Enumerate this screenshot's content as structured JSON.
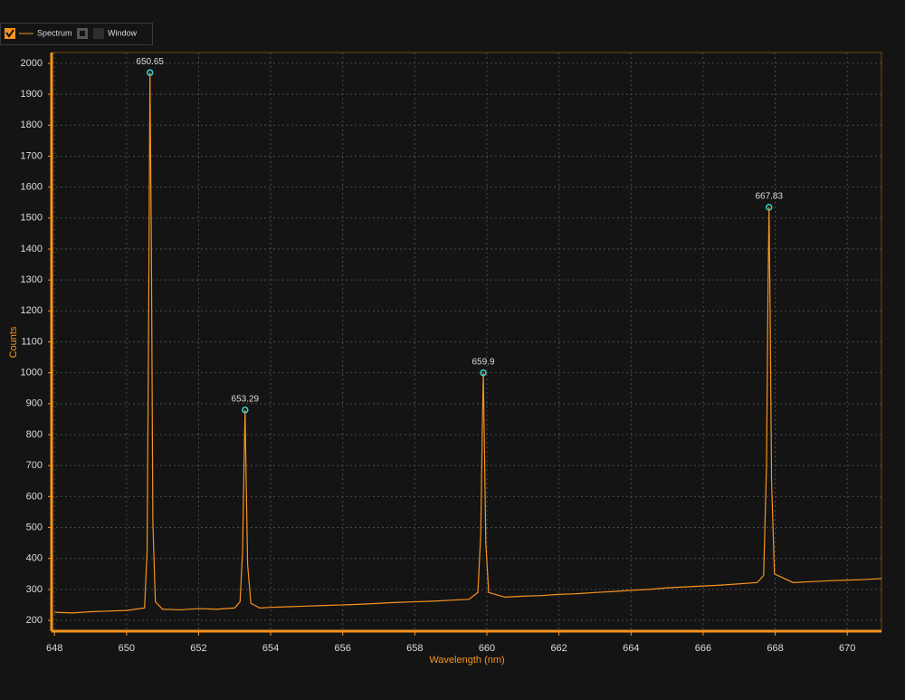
{
  "chart_data": {
    "type": "line",
    "x_label": "Wavelength (nm)",
    "y_label": "Counts",
    "x": [
      648,
      648.5,
      649,
      649.5,
      650,
      650.5,
      650.57,
      650.61,
      650.65,
      650.69,
      650.73,
      650.8,
      651,
      651.5,
      652,
      652.5,
      653,
      653.15,
      653.22,
      653.26,
      653.29,
      653.32,
      653.36,
      653.45,
      653.7,
      654,
      654.5,
      655,
      655.5,
      656,
      656.5,
      657,
      657.5,
      658,
      658.5,
      659,
      659.5,
      659.75,
      659.83,
      659.87,
      659.9,
      659.93,
      659.97,
      660.05,
      660.5,
      661,
      661.5,
      662,
      662.5,
      663,
      663.5,
      664,
      664.5,
      665,
      665.5,
      666,
      666.5,
      667,
      667.5,
      667.68,
      667.76,
      667.8,
      667.83,
      667.86,
      667.9,
      667.98,
      668.5,
      669,
      669.5,
      670,
      670.5,
      670.95
    ],
    "series": [
      {
        "name": "Spectrum",
        "color": "#f7931e",
        "visible": true,
        "values": [
          226,
          224,
          228,
          230,
          232,
          240,
          420,
          1100,
          1970,
          1400,
          520,
          260,
          236,
          234,
          238,
          236,
          240,
          260,
          420,
          700,
          880,
          650,
          380,
          255,
          240,
          242,
          244,
          246,
          248,
          250,
          252,
          255,
          258,
          260,
          262,
          265,
          268,
          290,
          480,
          800,
          1000,
          780,
          450,
          290,
          275,
          278,
          280,
          284,
          286,
          290,
          293,
          297,
          300,
          305,
          308,
          311,
          314,
          318,
          322,
          345,
          700,
          1250,
          1535,
          1200,
          650,
          350,
          322,
          325,
          328,
          330,
          332,
          335
        ]
      }
    ],
    "overlay": {
      "name": "Window",
      "visible": false
    },
    "peaks": [
      {
        "x": 650.65,
        "y": 1970
      },
      {
        "x": 653.29,
        "y": 880
      },
      {
        "x": 659.9,
        "y": 1000
      },
      {
        "x": 667.83,
        "y": 1535
      }
    ],
    "peak_color": "#3fd0d0",
    "xlim": [
      647.92,
      670.95
    ],
    "ylim": [
      165,
      2035
    ],
    "xticks": [
      648,
      650,
      652,
      654,
      656,
      658,
      660,
      662,
      664,
      666,
      668,
      670
    ],
    "yticks": [
      200,
      300,
      400,
      500,
      600,
      700,
      800,
      900,
      1000,
      1100,
      1200,
      1300,
      1400,
      1500,
      1600,
      1700,
      1800,
      1900,
      2000
    ],
    "grid": true
  }
}
